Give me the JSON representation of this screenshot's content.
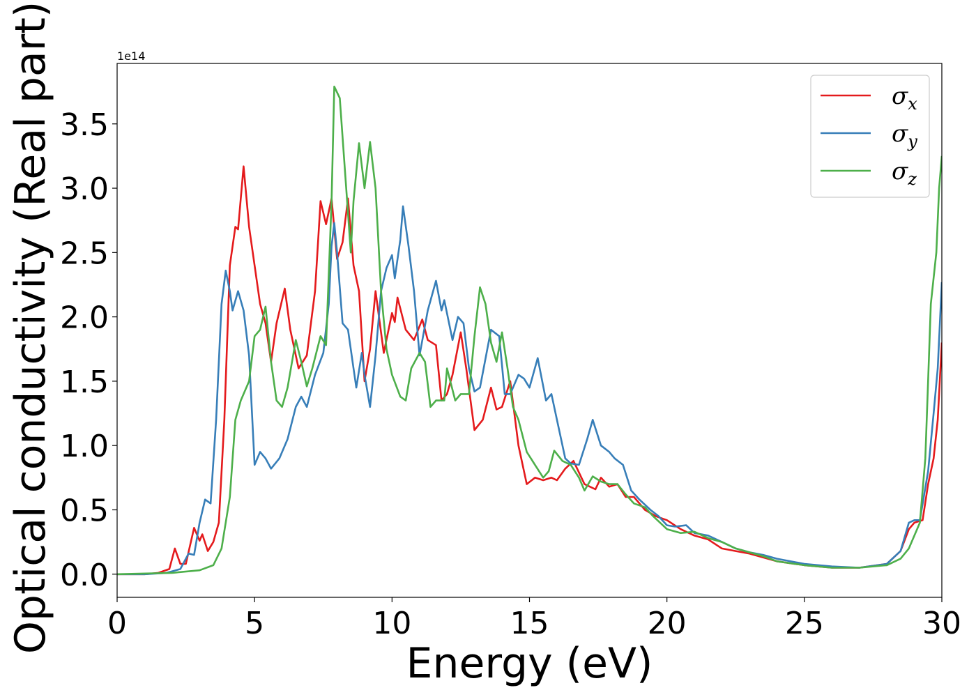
{
  "chart_data": {
    "type": "line",
    "title": "",
    "xlabel": "Energy (eV)",
    "ylabel": "Optical conductivity (Real part)",
    "y_scale_label": "1e14",
    "xlim": [
      0,
      30
    ],
    "ylim": [
      -0.18,
      3.97
    ],
    "x_ticks": [
      0,
      5,
      10,
      15,
      20,
      25,
      30
    ],
    "x_tick_labels": [
      "0",
      "5",
      "10",
      "15",
      "20",
      "25",
      "30"
    ],
    "y_ticks": [
      0.0,
      0.5,
      1.0,
      1.5,
      2.0,
      2.5,
      3.0,
      3.5
    ],
    "y_tick_labels": [
      "0.0",
      "0.5",
      "1.0",
      "1.5",
      "2.0",
      "2.5",
      "3.0",
      "3.5"
    ],
    "grid": false,
    "legend_position": "top-right",
    "series": [
      {
        "name": "σx",
        "symbol": "σ",
        "subscript": "x",
        "color": "#e41a1c",
        "points": [
          [
            0,
            0
          ],
          [
            1,
            0
          ],
          [
            1.5,
            0.01
          ],
          [
            1.9,
            0.04
          ],
          [
            2.1,
            0.2
          ],
          [
            2.3,
            0.08
          ],
          [
            2.5,
            0.08
          ],
          [
            2.8,
            0.36
          ],
          [
            3.0,
            0.26
          ],
          [
            3.1,
            0.31
          ],
          [
            3.3,
            0.18
          ],
          [
            3.5,
            0.25
          ],
          [
            3.7,
            0.4
          ],
          [
            3.9,
            1.2
          ],
          [
            4.1,
            2.4
          ],
          [
            4.3,
            2.7
          ],
          [
            4.4,
            2.68
          ],
          [
            4.6,
            3.17
          ],
          [
            4.8,
            2.7
          ],
          [
            5.0,
            2.4
          ],
          [
            5.2,
            2.1
          ],
          [
            5.4,
            1.95
          ],
          [
            5.6,
            1.65
          ],
          [
            5.8,
            1.95
          ],
          [
            6.1,
            2.22
          ],
          [
            6.3,
            1.9
          ],
          [
            6.6,
            1.6
          ],
          [
            6.9,
            1.7
          ],
          [
            7.2,
            2.2
          ],
          [
            7.4,
            2.9
          ],
          [
            7.6,
            2.72
          ],
          [
            7.8,
            2.92
          ],
          [
            8.0,
            2.45
          ],
          [
            8.2,
            2.58
          ],
          [
            8.4,
            2.92
          ],
          [
            8.6,
            2.4
          ],
          [
            8.8,
            2.2
          ],
          [
            9.0,
            1.5
          ],
          [
            9.2,
            1.75
          ],
          [
            9.4,
            2.2
          ],
          [
            9.7,
            1.72
          ],
          [
            10.0,
            2.03
          ],
          [
            10.1,
            1.96
          ],
          [
            10.2,
            2.15
          ],
          [
            10.5,
            1.9
          ],
          [
            10.8,
            1.82
          ],
          [
            11.1,
            1.98
          ],
          [
            11.3,
            1.82
          ],
          [
            11.6,
            1.78
          ],
          [
            11.8,
            1.35
          ],
          [
            12.0,
            1.4
          ],
          [
            12.2,
            1.55
          ],
          [
            12.5,
            1.88
          ],
          [
            12.7,
            1.6
          ],
          [
            13.0,
            1.12
          ],
          [
            13.3,
            1.2
          ],
          [
            13.6,
            1.45
          ],
          [
            13.8,
            1.28
          ],
          [
            14.0,
            1.3
          ],
          [
            14.3,
            1.5
          ],
          [
            14.6,
            1.0
          ],
          [
            14.9,
            0.7
          ],
          [
            15.2,
            0.75
          ],
          [
            15.5,
            0.73
          ],
          [
            15.8,
            0.75
          ],
          [
            16.0,
            0.73
          ],
          [
            16.3,
            0.82
          ],
          [
            16.6,
            0.88
          ],
          [
            17.0,
            0.7
          ],
          [
            17.4,
            0.66
          ],
          [
            17.6,
            0.75
          ],
          [
            17.9,
            0.68
          ],
          [
            18.2,
            0.7
          ],
          [
            18.5,
            0.6
          ],
          [
            18.8,
            0.6
          ],
          [
            19.2,
            0.5
          ],
          [
            19.6,
            0.45
          ],
          [
            20.0,
            0.42
          ],
          [
            20.5,
            0.35
          ],
          [
            21.0,
            0.3
          ],
          [
            21.5,
            0.27
          ],
          [
            22.0,
            0.2
          ],
          [
            22.5,
            0.18
          ],
          [
            23.0,
            0.16
          ],
          [
            23.5,
            0.13
          ],
          [
            24.0,
            0.1
          ],
          [
            25.0,
            0.07
          ],
          [
            26.0,
            0.05
          ],
          [
            27.0,
            0.05
          ],
          [
            28.0,
            0.08
          ],
          [
            28.5,
            0.18
          ],
          [
            28.8,
            0.35
          ],
          [
            29.0,
            0.4
          ],
          [
            29.3,
            0.42
          ],
          [
            29.5,
            0.7
          ],
          [
            29.7,
            0.9
          ],
          [
            29.85,
            1.2
          ],
          [
            30.0,
            1.8
          ]
        ]
      },
      {
        "name": "σy",
        "symbol": "σ",
        "subscript": "y",
        "color": "#377eb8",
        "points": [
          [
            0,
            0
          ],
          [
            1,
            0
          ],
          [
            1.8,
            0.01
          ],
          [
            2.3,
            0.04
          ],
          [
            2.6,
            0.16
          ],
          [
            2.8,
            0.15
          ],
          [
            3.0,
            0.4
          ],
          [
            3.2,
            0.58
          ],
          [
            3.4,
            0.55
          ],
          [
            3.6,
            1.2
          ],
          [
            3.8,
            2.1
          ],
          [
            3.95,
            2.36
          ],
          [
            4.1,
            2.2
          ],
          [
            4.2,
            2.05
          ],
          [
            4.4,
            2.2
          ],
          [
            4.6,
            2.05
          ],
          [
            4.8,
            1.7
          ],
          [
            5.0,
            0.85
          ],
          [
            5.2,
            0.95
          ],
          [
            5.4,
            0.9
          ],
          [
            5.6,
            0.82
          ],
          [
            5.9,
            0.9
          ],
          [
            6.2,
            1.05
          ],
          [
            6.5,
            1.3
          ],
          [
            6.7,
            1.38
          ],
          [
            6.9,
            1.3
          ],
          [
            7.2,
            1.55
          ],
          [
            7.5,
            1.72
          ],
          [
            7.7,
            2.1
          ],
          [
            7.8,
            2.55
          ],
          [
            7.9,
            2.73
          ],
          [
            8.0,
            2.5
          ],
          [
            8.2,
            1.95
          ],
          [
            8.4,
            1.9
          ],
          [
            8.6,
            1.6
          ],
          [
            8.7,
            1.45
          ],
          [
            8.9,
            1.72
          ],
          [
            9.0,
            1.55
          ],
          [
            9.2,
            1.3
          ],
          [
            9.4,
            1.7
          ],
          [
            9.6,
            2.2
          ],
          [
            9.8,
            2.38
          ],
          [
            10.0,
            2.48
          ],
          [
            10.1,
            2.3
          ],
          [
            10.3,
            2.6
          ],
          [
            10.4,
            2.86
          ],
          [
            10.6,
            2.55
          ],
          [
            10.8,
            2.2
          ],
          [
            11.0,
            1.7
          ],
          [
            11.3,
            2.05
          ],
          [
            11.6,
            2.28
          ],
          [
            11.8,
            2.05
          ],
          [
            11.9,
            2.13
          ],
          [
            12.2,
            1.82
          ],
          [
            12.4,
            2.0
          ],
          [
            12.6,
            1.95
          ],
          [
            12.8,
            1.6
          ],
          [
            13.0,
            1.42
          ],
          [
            13.2,
            1.45
          ],
          [
            13.6,
            1.9
          ],
          [
            13.9,
            1.85
          ],
          [
            14.1,
            1.4
          ],
          [
            14.3,
            1.4
          ],
          [
            14.6,
            1.55
          ],
          [
            14.8,
            1.52
          ],
          [
            15.0,
            1.45
          ],
          [
            15.3,
            1.68
          ],
          [
            15.6,
            1.35
          ],
          [
            15.8,
            1.4
          ],
          [
            16.0,
            1.2
          ],
          [
            16.3,
            0.9
          ],
          [
            16.5,
            0.86
          ],
          [
            16.8,
            0.85
          ],
          [
            17.1,
            1.05
          ],
          [
            17.3,
            1.2
          ],
          [
            17.6,
            1.0
          ],
          [
            17.9,
            0.95
          ],
          [
            18.1,
            0.9
          ],
          [
            18.4,
            0.85
          ],
          [
            18.7,
            0.65
          ],
          [
            19.0,
            0.58
          ],
          [
            19.4,
            0.5
          ],
          [
            19.7,
            0.45
          ],
          [
            20.0,
            0.38
          ],
          [
            20.3,
            0.37
          ],
          [
            20.7,
            0.38
          ],
          [
            21.0,
            0.32
          ],
          [
            21.5,
            0.3
          ],
          [
            22.0,
            0.25
          ],
          [
            22.5,
            0.2
          ],
          [
            23.0,
            0.17
          ],
          [
            23.5,
            0.15
          ],
          [
            24.0,
            0.12
          ],
          [
            25.0,
            0.08
          ],
          [
            26.0,
            0.06
          ],
          [
            27.0,
            0.05
          ],
          [
            28.0,
            0.08
          ],
          [
            28.5,
            0.18
          ],
          [
            28.8,
            0.4
          ],
          [
            29.0,
            0.42
          ],
          [
            29.2,
            0.42
          ],
          [
            29.5,
            0.8
          ],
          [
            29.7,
            1.25
          ],
          [
            29.85,
            1.6
          ],
          [
            30.0,
            2.27
          ]
        ]
      },
      {
        "name": "σz",
        "symbol": "σ",
        "subscript": "z",
        "color": "#4daf4a",
        "points": [
          [
            0,
            0
          ],
          [
            2,
            0.01
          ],
          [
            3,
            0.03
          ],
          [
            3.5,
            0.07
          ],
          [
            3.8,
            0.2
          ],
          [
            4.1,
            0.6
          ],
          [
            4.3,
            1.2
          ],
          [
            4.5,
            1.35
          ],
          [
            4.8,
            1.5
          ],
          [
            5.0,
            1.85
          ],
          [
            5.2,
            1.9
          ],
          [
            5.4,
            2.08
          ],
          [
            5.6,
            1.65
          ],
          [
            5.8,
            1.35
          ],
          [
            6.0,
            1.3
          ],
          [
            6.2,
            1.45
          ],
          [
            6.5,
            1.82
          ],
          [
            6.7,
            1.65
          ],
          [
            6.9,
            1.46
          ],
          [
            7.1,
            1.6
          ],
          [
            7.4,
            1.85
          ],
          [
            7.6,
            1.78
          ],
          [
            7.8,
            2.9
          ],
          [
            7.9,
            3.79
          ],
          [
            8.1,
            3.7
          ],
          [
            8.3,
            3.1
          ],
          [
            8.5,
            2.5
          ],
          [
            8.6,
            2.9
          ],
          [
            8.8,
            3.35
          ],
          [
            9.0,
            3.0
          ],
          [
            9.2,
            3.36
          ],
          [
            9.4,
            3.0
          ],
          [
            9.6,
            2.2
          ],
          [
            9.8,
            1.75
          ],
          [
            10.0,
            1.55
          ],
          [
            10.3,
            1.38
          ],
          [
            10.5,
            1.35
          ],
          [
            10.7,
            1.6
          ],
          [
            11.0,
            1.72
          ],
          [
            11.2,
            1.65
          ],
          [
            11.4,
            1.3
          ],
          [
            11.6,
            1.35
          ],
          [
            11.9,
            1.35
          ],
          [
            12.0,
            1.6
          ],
          [
            12.3,
            1.35
          ],
          [
            12.5,
            1.4
          ],
          [
            12.8,
            1.4
          ],
          [
            13.0,
            1.85
          ],
          [
            13.2,
            2.23
          ],
          [
            13.4,
            2.1
          ],
          [
            13.6,
            1.8
          ],
          [
            13.8,
            1.65
          ],
          [
            14.0,
            1.88
          ],
          [
            14.2,
            1.6
          ],
          [
            14.4,
            1.3
          ],
          [
            14.6,
            1.2
          ],
          [
            14.9,
            0.95
          ],
          [
            15.2,
            0.85
          ],
          [
            15.5,
            0.75
          ],
          [
            15.7,
            0.8
          ],
          [
            15.9,
            0.96
          ],
          [
            16.2,
            0.88
          ],
          [
            16.5,
            0.85
          ],
          [
            16.8,
            0.75
          ],
          [
            17.0,
            0.65
          ],
          [
            17.3,
            0.76
          ],
          [
            17.6,
            0.72
          ],
          [
            17.9,
            0.7
          ],
          [
            18.2,
            0.7
          ],
          [
            18.5,
            0.62
          ],
          [
            18.8,
            0.55
          ],
          [
            19.2,
            0.52
          ],
          [
            19.5,
            0.45
          ],
          [
            20.0,
            0.35
          ],
          [
            20.5,
            0.32
          ],
          [
            21.0,
            0.33
          ],
          [
            21.5,
            0.28
          ],
          [
            22.0,
            0.25
          ],
          [
            22.5,
            0.2
          ],
          [
            23.0,
            0.17
          ],
          [
            23.5,
            0.14
          ],
          [
            24.0,
            0.1
          ],
          [
            25.0,
            0.07
          ],
          [
            26.0,
            0.05
          ],
          [
            27.0,
            0.05
          ],
          [
            28.0,
            0.07
          ],
          [
            28.5,
            0.12
          ],
          [
            28.8,
            0.2
          ],
          [
            29.0,
            0.3
          ],
          [
            29.2,
            0.4
          ],
          [
            29.4,
            0.9
          ],
          [
            29.5,
            1.5
          ],
          [
            29.6,
            2.1
          ],
          [
            29.8,
            2.5
          ],
          [
            29.9,
            3.0
          ],
          [
            30.0,
            3.25
          ]
        ]
      }
    ]
  }
}
